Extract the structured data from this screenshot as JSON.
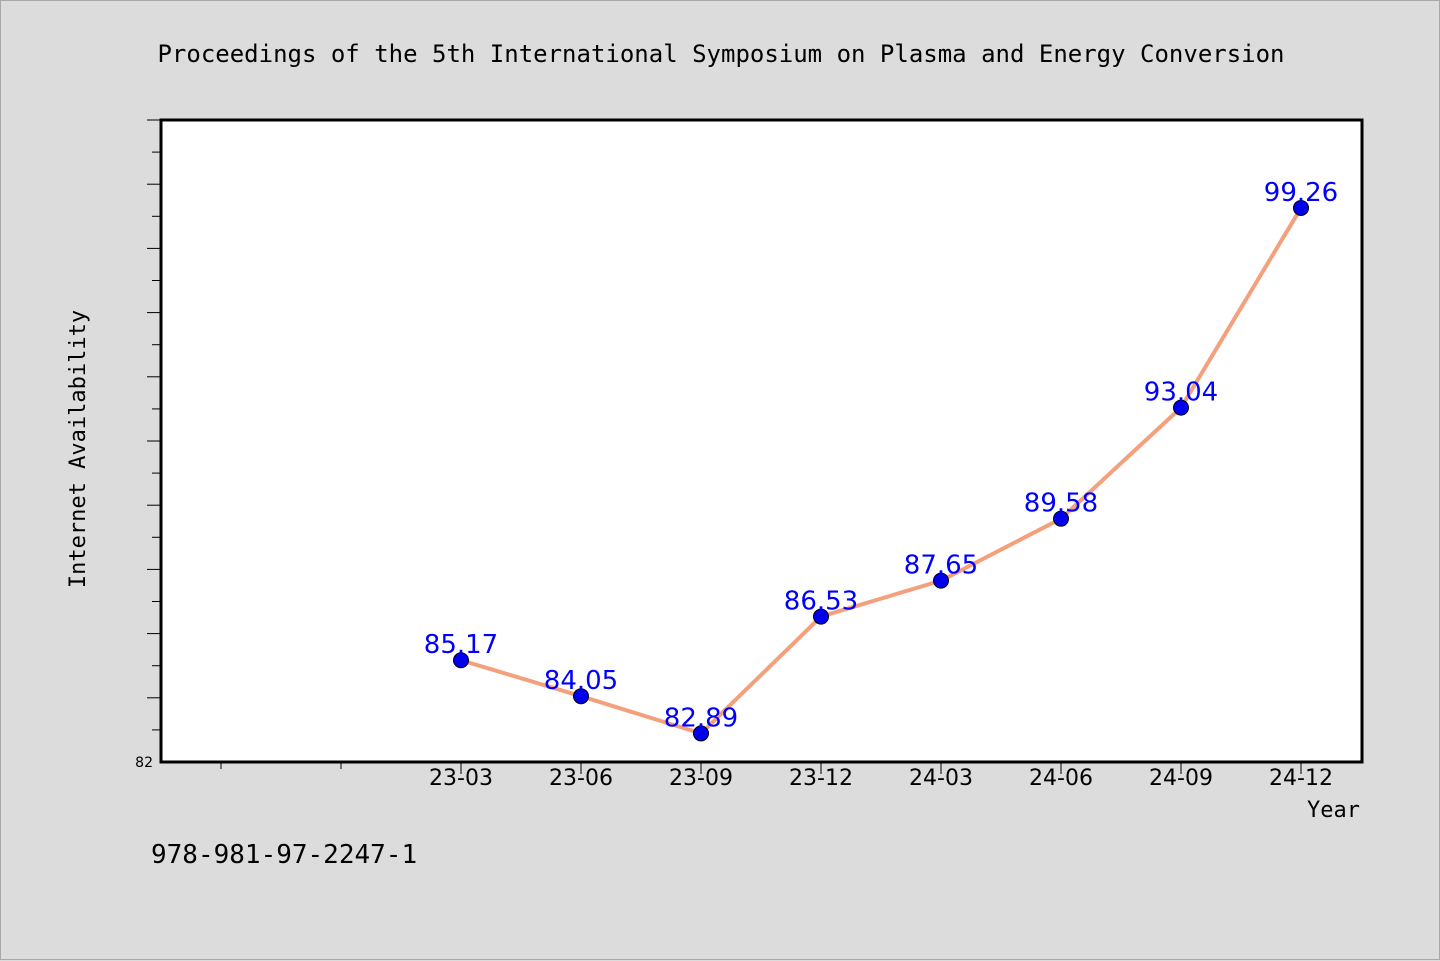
{
  "chart_data": {
    "type": "line",
    "title": "Proceedings of the 5th International Symposium on Plasma and Energy Conversion",
    "xlabel": "Year",
    "ylabel": "Internet Availability",
    "categories": [
      "23-03",
      "23-06",
      "23-09",
      "23-12",
      "24-03",
      "24-06",
      "24-09",
      "24-12"
    ],
    "values": [
      85.17,
      84.05,
      82.89,
      86.53,
      87.65,
      89.58,
      93.04,
      99.26
    ],
    "data_labels": [
      "85.17",
      "84.05",
      "82.89",
      "86.53",
      "87.65",
      "89.58",
      "93.04",
      "99.26"
    ],
    "ylim": [
      82,
      102
    ],
    "y_tick_labels": [
      "82"
    ],
    "grid": false,
    "line_color": "#f4a07c",
    "marker_color": "#0000ee",
    "label_color": "#0000ff"
  },
  "footer_text": "978-981-97-2247-1"
}
